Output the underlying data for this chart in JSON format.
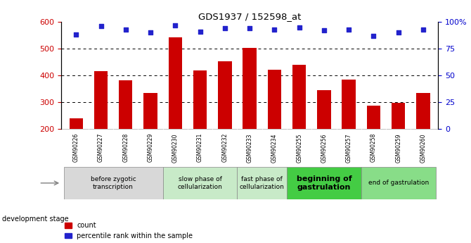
{
  "title": "GDS1937 / 152598_at",
  "samples": [
    "GSM90226",
    "GSM90227",
    "GSM90228",
    "GSM90229",
    "GSM90230",
    "GSM90231",
    "GSM90232",
    "GSM90233",
    "GSM90234",
    "GSM90255",
    "GSM90256",
    "GSM90257",
    "GSM90258",
    "GSM90259",
    "GSM90260"
  ],
  "counts": [
    238,
    415,
    380,
    333,
    543,
    418,
    452,
    502,
    422,
    440,
    345,
    385,
    287,
    297,
    333
  ],
  "percentile_ranks": [
    88,
    96,
    93,
    90,
    97,
    91,
    94,
    94,
    93,
    95,
    92,
    93,
    87,
    90,
    93
  ],
  "ylim_left": [
    200,
    600
  ],
  "ylim_right": [
    0,
    100
  ],
  "yticks_left": [
    200,
    300,
    400,
    500,
    600
  ],
  "yticks_right": [
    0,
    25,
    50,
    75,
    100
  ],
  "bar_color": "#cc0000",
  "dot_color": "#2222cc",
  "stages": [
    {
      "label": "before zygotic\ntranscription",
      "columns": [
        0,
        1,
        2,
        3
      ],
      "color": "#d8d8d8",
      "fontsize": 6.5,
      "bold": false
    },
    {
      "label": "slow phase of\ncellularization",
      "columns": [
        4,
        5,
        6
      ],
      "color": "#c8eac8",
      "fontsize": 6.5,
      "bold": false
    },
    {
      "label": "fast phase of\ncellularization",
      "columns": [
        7,
        8
      ],
      "color": "#c8eac8",
      "fontsize": 6.5,
      "bold": false
    },
    {
      "label": "beginning of\ngastrulation",
      "columns": [
        9,
        10,
        11
      ],
      "color": "#44cc44",
      "fontsize": 8,
      "bold": true
    },
    {
      "label": "end of gastrulation",
      "columns": [
        12,
        13,
        14
      ],
      "color": "#88dd88",
      "fontsize": 6.5,
      "bold": false
    }
  ],
  "dev_stage_label": "development stage",
  "legend_count_label": "count",
  "legend_pct_label": "percentile rank within the sample",
  "right_axis_color": "#0000cc",
  "left_axis_color": "#cc0000",
  "background_color": "#ffffff",
  "tick_band_color": "#cccccc",
  "gridline_color": "#333333"
}
